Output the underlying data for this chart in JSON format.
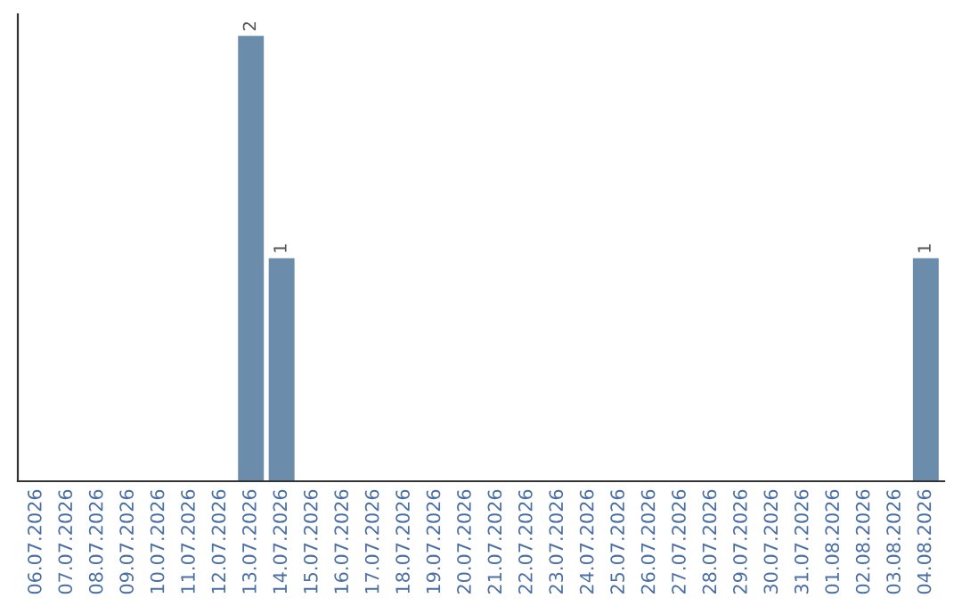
{
  "chart_data": {
    "type": "bar",
    "categories": [
      "06.07.2026",
      "07.07.2026",
      "08.07.2026",
      "09.07.2026",
      "10.07.2026",
      "11.07.2026",
      "12.07.2026",
      "13.07.2026",
      "14.07.2026",
      "15.07.2026",
      "16.07.2026",
      "17.07.2026",
      "18.07.2026",
      "19.07.2026",
      "20.07.2026",
      "21.07.2026",
      "22.07.2026",
      "23.07.2026",
      "24.07.2026",
      "25.07.2026",
      "26.07.2026",
      "27.07.2026",
      "28.07.2026",
      "29.07.2026",
      "30.07.2026",
      "31.07.2026",
      "01.08.2026",
      "02.08.2026",
      "03.08.2026",
      "04.08.2026"
    ],
    "values": [
      0,
      0,
      0,
      0,
      0,
      0,
      0,
      2,
      1,
      0,
      0,
      0,
      0,
      0,
      0,
      0,
      0,
      0,
      0,
      0,
      0,
      0,
      0,
      0,
      0,
      0,
      0,
      0,
      0,
      1
    ],
    "value_labels": [
      null,
      null,
      null,
      null,
      null,
      null,
      null,
      "2",
      "1",
      null,
      null,
      null,
      null,
      null,
      null,
      null,
      null,
      null,
      null,
      null,
      null,
      null,
      null,
      null,
      null,
      null,
      null,
      null,
      null,
      "1"
    ],
    "color": "#6b8caa",
    "ylim": [
      0,
      2.1
    ],
    "tick_labels": "x",
    "grid": false,
    "legend": false
  }
}
